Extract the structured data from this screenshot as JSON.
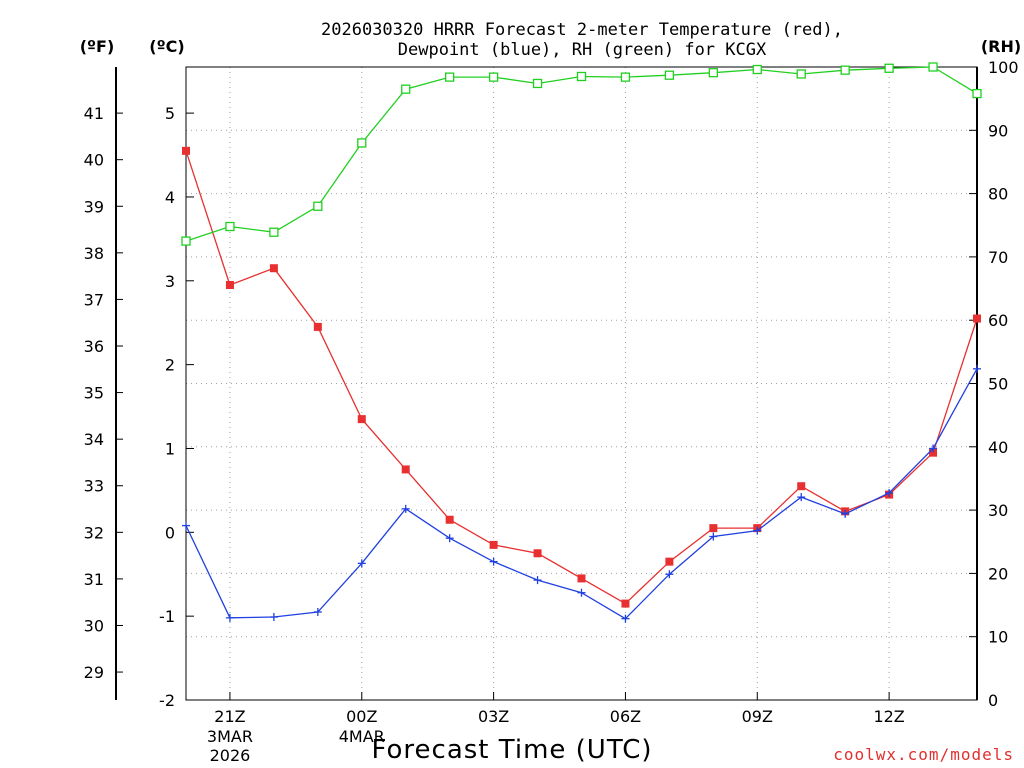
{
  "chart_data": {
    "type": "line",
    "title": [
      "2026030320 HRRR Forecast 2-meter Temperature (red),",
      "Dewpoint (blue), RH (green) for KCGX"
    ],
    "xlabel": "Forecast Time (UTC)",
    "credit": "coolwx.com/models",
    "units": {
      "fahrenheit": "(ºF)",
      "celsius": "(ºC)",
      "rh": "(RH)"
    },
    "x_hours": [
      0,
      1,
      2,
      3,
      4,
      5,
      6,
      7,
      8,
      9,
      10,
      11,
      12,
      13,
      14,
      15,
      16,
      17,
      18
    ],
    "x_ticks": [
      {
        "hour": 1,
        "label": "21Z",
        "sub": [
          "3MAR",
          "2026"
        ]
      },
      {
        "hour": 4,
        "label": "00Z",
        "sub": [
          "4MAR"
        ]
      },
      {
        "hour": 7,
        "label": "03Z",
        "sub": []
      },
      {
        "hour": 10,
        "label": "06Z",
        "sub": []
      },
      {
        "hour": 13,
        "label": "09Z",
        "sub": []
      },
      {
        "hour": 16,
        "label": "12Z",
        "sub": []
      }
    ],
    "y_celsius": {
      "range": [
        -2,
        5.55
      ],
      "ticks": [
        "-2",
        "-1",
        "0",
        "1",
        "2",
        "3",
        "4",
        "5"
      ]
    },
    "y_fahrenheit": {
      "range": [
        28.4,
        41.99
      ],
      "ticks": [
        "29",
        "30",
        "31",
        "32",
        "33",
        "34",
        "35",
        "36",
        "37",
        "38",
        "39",
        "40",
        "41"
      ]
    },
    "y_rh": {
      "range": [
        0,
        100
      ],
      "ticks": [
        "0",
        "10",
        "20",
        "30",
        "40",
        "50",
        "60",
        "70",
        "80",
        "90",
        "100"
      ]
    },
    "series": [
      {
        "name": "Temperature",
        "axis": "celsius",
        "color": "#e83030",
        "marker": "filled-square",
        "values": [
          4.55,
          2.95,
          3.15,
          2.45,
          1.35,
          0.75,
          0.15,
          -0.15,
          -0.25,
          -0.55,
          -0.85,
          -0.35,
          0.05,
          0.05,
          0.55,
          0.25,
          0.45,
          0.95,
          2.55
        ]
      },
      {
        "name": "Dewpoint",
        "axis": "celsius",
        "color": "#2040e0",
        "marker": "plus",
        "values": [
          0.08,
          -1.02,
          -1.01,
          -0.95,
          -0.37,
          0.28,
          -0.07,
          -0.35,
          -0.57,
          -0.72,
          -1.03,
          -0.5,
          -0.05,
          0.02,
          0.42,
          0.22,
          0.47,
          1.0,
          1.95
        ]
      },
      {
        "name": "RH",
        "axis": "rh",
        "color": "#20d020",
        "marker": "open-square",
        "values": [
          72.5,
          74.8,
          73.9,
          78.0,
          88.0,
          96.5,
          98.4,
          98.4,
          97.4,
          98.5,
          98.4,
          98.7,
          99.1,
          99.6,
          98.9,
          99.5,
          99.8,
          100.0,
          95.8
        ]
      }
    ]
  }
}
